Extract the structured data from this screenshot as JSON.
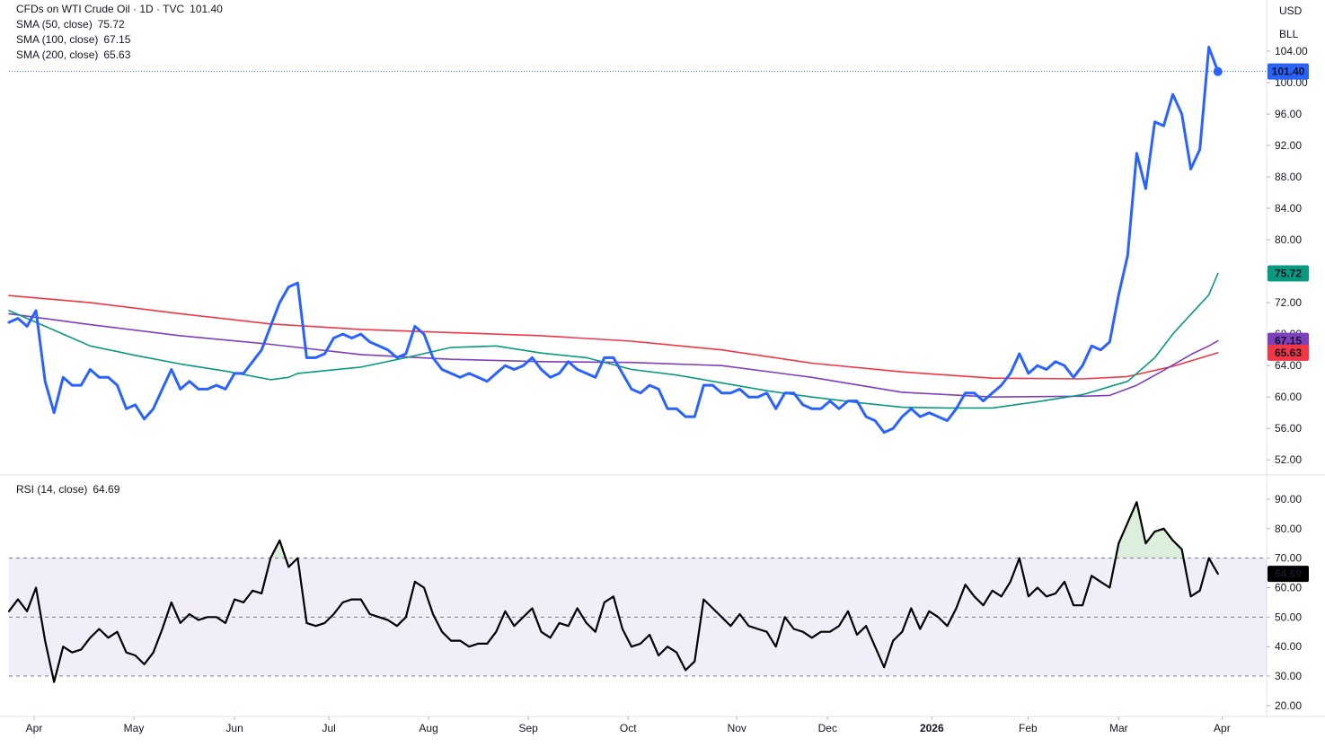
{
  "chart_data": [
    {
      "type": "line",
      "currency": "USD",
      "unit": "BLL",
      "xlim": [
        0,
        139.4
      ],
      "ylim": [
        50.2,
        110.5
      ],
      "yticks": [
        {
          "value": 52,
          "label": "52.00"
        },
        {
          "value": 56,
          "label": "56.00"
        },
        {
          "value": 60,
          "label": "60.00"
        },
        {
          "value": 64,
          "label": "64.00"
        },
        {
          "value": 68,
          "label": "68.00"
        },
        {
          "value": 72,
          "label": "72.00"
        },
        {
          "value": 76,
          "label": "76.00"
        },
        {
          "value": 80,
          "label": "80.00"
        },
        {
          "value": 84,
          "label": "84.00"
        },
        {
          "value": 88,
          "label": "88.00"
        },
        {
          "value": 92,
          "label": "92.00"
        },
        {
          "value": 96,
          "label": "96.00"
        },
        {
          "value": 100,
          "label": "100.00"
        },
        {
          "value": 104,
          "label": "104.00"
        }
      ],
      "grid": false,
      "last_price_line": true,
      "series": [
        {
          "name": "CFDs on WTI Crude Oil · 1D · TVC",
          "color": "#2962ff",
          "value_label": "101.40",
          "values": [
            69.5,
            70,
            69,
            71,
            62,
            58,
            62.5,
            61.5,
            61.5,
            63.5,
            62.5,
            62.5,
            61.5,
            58.5,
            59,
            57.2,
            58.5,
            61,
            63.5,
            61,
            62,
            61,
            61,
            61.5,
            61,
            63,
            63,
            64.5,
            66,
            69,
            72,
            74,
            74.5,
            65,
            65,
            65.5,
            67.5,
            68,
            67.5,
            68,
            67,
            66.5,
            66,
            65,
            65.5,
            69,
            68,
            65,
            63.5,
            63,
            62.5,
            63,
            62.5,
            62,
            63,
            64,
            63.5,
            64,
            65,
            63.5,
            62.5,
            63,
            64.5,
            63.5,
            63,
            62.5,
            65,
            65,
            63,
            61,
            60.5,
            61.5,
            61,
            58.5,
            58.5,
            57.5,
            57.5,
            61.5,
            61.5,
            60.5,
            60.5,
            61,
            60,
            60,
            60.5,
            58.5,
            60.5,
            60.5,
            59,
            58.5,
            58.5,
            59.5,
            58.5,
            59.5,
            59.5,
            57.5,
            57,
            55.5,
            56,
            57.5,
            58.5,
            57.5,
            58,
            57.5,
            57,
            58.5,
            60.5,
            60.5,
            59.5,
            60.5,
            61.5,
            63,
            65.5,
            63,
            64,
            63.5,
            64.5,
            64,
            62.5,
            64,
            66.5,
            66,
            67,
            73,
            78,
            91,
            86.5,
            95,
            94.5,
            98.5,
            96,
            89,
            91.5,
            104.5,
            101.4
          ]
        },
        {
          "name": "SMA (50, close)",
          "color": "#089981",
          "value_label": "75.72",
          "x": [
            0,
            4,
            9,
            14,
            19,
            24,
            29,
            31,
            32,
            39,
            44,
            49,
            54,
            59,
            64,
            69,
            74,
            79,
            84,
            89,
            94,
            99,
            104,
            109,
            114,
            119,
            124,
            127,
            129,
            131,
            133,
            134
          ],
          "values": [
            71,
            69,
            66.5,
            65.3,
            64.2,
            63.3,
            62.2,
            62.5,
            63,
            63.8,
            65,
            66.3,
            66.5,
            65.6,
            65,
            63.5,
            62.8,
            61.8,
            60.8,
            60,
            59.3,
            58.7,
            58.6,
            58.6,
            59.4,
            60.3,
            62,
            65,
            68,
            70.5,
            73,
            75.72
          ]
        },
        {
          "name": "SMA (100, close)",
          "color": "#7e3fbf",
          "value_label": "67.15",
          "x": [
            0,
            9,
            19,
            29,
            39,
            49,
            59,
            69,
            79,
            89,
            99,
            109,
            119,
            122,
            125,
            128,
            131,
            133,
            134
          ],
          "values": [
            70.6,
            69.2,
            67.8,
            66.7,
            65.4,
            64.8,
            64.5,
            64.4,
            64,
            62.5,
            60.6,
            60,
            60.1,
            60.2,
            61.5,
            63.4,
            65.4,
            66.5,
            67.15
          ]
        },
        {
          "name": "SMA (200, close)",
          "color": "#f23645",
          "value_label": "65.63",
          "x": [
            0,
            9,
            19,
            29,
            39,
            49,
            59,
            69,
            79,
            89,
            99,
            109,
            119,
            124,
            129,
            134
          ],
          "values": [
            72.9,
            72,
            70.6,
            69.3,
            68.6,
            68.2,
            67.8,
            67.1,
            66,
            64.3,
            63.2,
            62.4,
            62.3,
            62.6,
            63.9,
            65.63
          ]
        }
      ]
    },
    {
      "type": "line",
      "xlim": [
        0,
        139.4
      ],
      "ylim": [
        16.3,
        97.9
      ],
      "yticks": [
        {
          "value": 20,
          "label": "20.00"
        },
        {
          "value": 30,
          "label": "30.00"
        },
        {
          "value": 40,
          "label": "40.00"
        },
        {
          "value": 50,
          "label": "50.00"
        },
        {
          "value": 60,
          "label": "60.00"
        },
        {
          "value": 70,
          "label": "70.00"
        },
        {
          "value": 80,
          "label": "80.00"
        },
        {
          "value": 90,
          "label": "90.00"
        }
      ],
      "grid": false,
      "bands": [
        70,
        50,
        30
      ],
      "band_fill": "#7e57c2",
      "overbought_fill": "#4caf50",
      "xticks": [
        {
          "value": 2.79,
          "label": "Apr"
        },
        {
          "value": 13.84,
          "label": "May"
        },
        {
          "value": 25.0,
          "label": "Jun"
        },
        {
          "value": 35.46,
          "label": "Jul"
        },
        {
          "value": 46.51,
          "label": "Aug"
        },
        {
          "value": 57.57,
          "label": "Sep"
        },
        {
          "value": 68.63,
          "label": "Oct"
        },
        {
          "value": 80.68,
          "label": "Nov"
        },
        {
          "value": 90.74,
          "label": "Dec"
        },
        {
          "value": 102.29,
          "label": "2026"
        },
        {
          "value": 112.95,
          "label": "Feb"
        },
        {
          "value": 123.0,
          "label": "Mar"
        },
        {
          "value": 134.46,
          "label": "Apr"
        }
      ],
      "series": [
        {
          "name": "RSI (14, close)",
          "color": "#000000",
          "value_label": "64.69",
          "values": [
            52,
            56,
            52,
            60,
            42,
            28,
            40,
            38,
            39,
            43,
            46,
            43,
            45,
            38,
            37,
            34,
            38,
            46,
            55,
            48,
            51,
            49,
            50,
            50,
            48,
            56,
            55,
            59,
            58,
            70,
            76,
            67,
            70,
            48,
            47,
            48,
            51,
            55,
            56,
            56,
            51,
            50,
            49,
            47,
            50,
            62,
            60,
            51,
            45,
            42,
            42,
            40,
            41,
            41,
            45,
            52,
            47,
            50,
            53,
            45,
            43,
            48,
            47,
            53,
            48,
            45,
            55,
            57,
            46,
            40,
            41,
            44,
            37,
            40,
            38,
            32,
            35,
            56,
            53,
            50,
            47,
            51,
            47,
            46,
            45,
            40,
            50,
            46,
            45,
            43,
            45,
            45,
            47,
            52,
            44,
            47,
            40,
            33,
            42,
            45,
            53,
            46,
            52,
            50,
            47,
            53,
            61,
            57,
            54,
            59,
            57,
            62,
            70,
            57,
            60,
            57,
            58,
            62,
            54,
            54,
            64,
            62,
            60,
            75,
            82,
            89,
            75,
            79,
            80,
            76,
            73,
            57,
            59,
            70,
            64.69
          ]
        }
      ]
    }
  ]
}
